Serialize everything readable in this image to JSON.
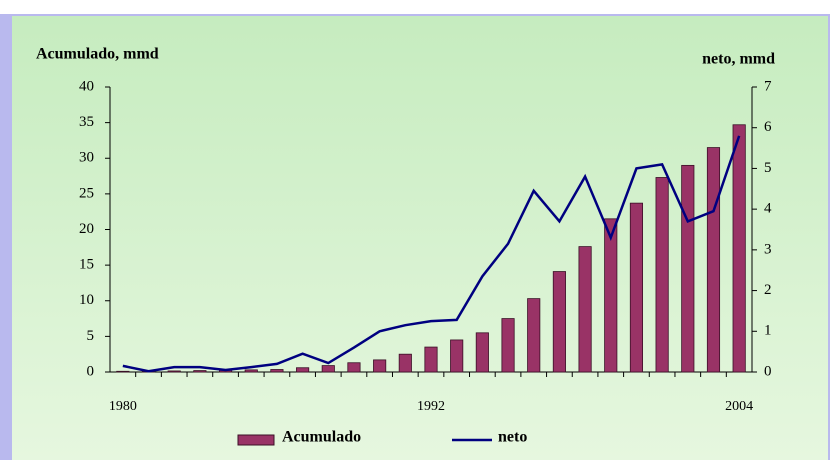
{
  "chart_data": {
    "type": "bar_line",
    "y_label": "Acumulado, mmd",
    "y2_label": "neto, mmd",
    "categories": [
      "1980",
      null,
      null,
      null,
      null,
      null,
      null,
      null,
      null,
      null,
      null,
      null,
      "1992",
      null,
      null,
      null,
      null,
      null,
      null,
      null,
      null,
      null,
      null,
      null,
      "2004"
    ],
    "series": [
      {
        "name": "Acumulado",
        "type": "bar",
        "color": "#993366",
        "values": [
          0.1,
          0.1,
          0.15,
          0.2,
          0.25,
          0.3,
          0.35,
          0.6,
          0.9,
          1.3,
          1.7,
          2.5,
          3.5,
          4.5,
          5.5,
          7.5,
          10.3,
          14.1,
          17.6,
          21.5,
          23.7,
          27.3,
          29.0,
          31.5,
          34.7
        ]
      },
      {
        "name": "neto",
        "type": "line",
        "axis": "y2",
        "color": "#000080",
        "values": [
          0.15,
          0.02,
          0.12,
          0.12,
          0.05,
          0.12,
          0.2,
          0.45,
          0.22,
          0.6,
          1.0,
          1.15,
          1.25,
          1.28,
          2.35,
          3.15,
          4.45,
          3.7,
          4.8,
          3.3,
          5.0,
          5.1,
          3.7,
          3.95,
          5.8
        ]
      }
    ],
    "ylim": [
      0,
      40
    ],
    "yticks": [
      0,
      5,
      10,
      15,
      20,
      25,
      30,
      35,
      40
    ],
    "y2lim": [
      0,
      7
    ],
    "y2ticks": [
      0,
      1,
      2,
      3,
      4,
      5,
      6,
      7
    ]
  }
}
